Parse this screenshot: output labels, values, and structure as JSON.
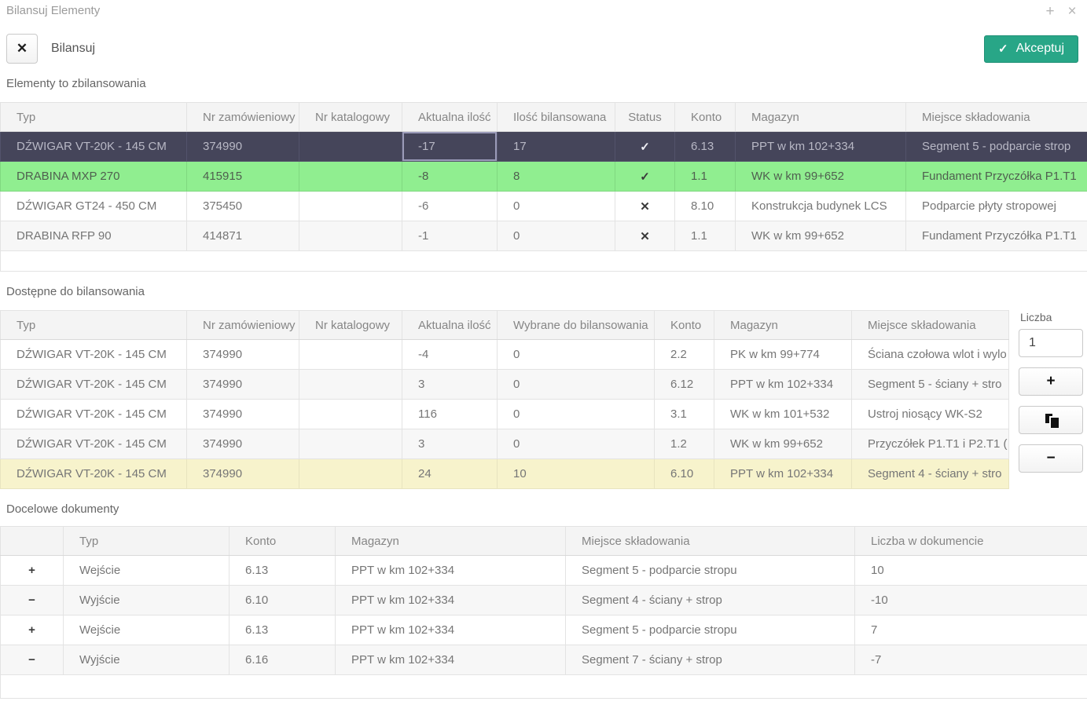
{
  "window": {
    "title": "Bilansuj Elementy",
    "plus_icon": "+",
    "close_icon": "×"
  },
  "toolbar": {
    "close_icon": "✕",
    "title": "Bilansuj",
    "accept_icon": "✓",
    "accept_label": "Akceptuj"
  },
  "colors": {
    "accent_green": "#28a687",
    "selected_row": "#45455a",
    "balanced_row": "#90ee90",
    "partial_row": "#f7f3cc"
  },
  "side_panel": {
    "label": "Liczba",
    "value": "1",
    "plus_label": "+",
    "minus_label": "−",
    "copy_icon": "copy-pages"
  },
  "tables": {
    "elements": {
      "title": "Elementy to zbilansowania",
      "columns": [
        "Typ",
        "Nr zamówieniowy",
        "Nr katalogowy",
        "Aktualna ilość",
        "Ilość bilansowana",
        "Status",
        "Konto",
        "Magazyn",
        "Miejsce składowania"
      ],
      "widths": [
        237,
        143,
        131,
        121,
        150,
        76,
        77,
        217,
        268
      ],
      "icon_col": 5,
      "center_cols": [
        5
      ],
      "empty_height": 26,
      "rows": [
        {
          "state": "selected",
          "focus_col": 3,
          "cells": [
            "DŹWIGAR VT-20K - 145 CM",
            "374990",
            "",
            "-17",
            "17",
            "✓",
            "6.13",
            "PPT w km 102+334",
            "Segment 5 - podparcie strop"
          ]
        },
        {
          "state": "green",
          "cells": [
            "DRABINA MXP 270",
            "415915",
            "",
            "-8",
            "8",
            "✓",
            "1.1",
            "WK w km 99+652",
            "Fundament Przyczółka P1.T1"
          ]
        },
        {
          "state": "",
          "cells": [
            "DŹWIGAR GT24 - 450 CM",
            "375450",
            "",
            "-6",
            "0",
            "✕",
            "8.10",
            "Konstrukcja budynek LCS",
            "Podparcie płyty stropowej"
          ]
        },
        {
          "state": "stripe",
          "cells": [
            "DRABINA RFP 90",
            "414871",
            "",
            "-1",
            "0",
            "✕",
            "1.1",
            "WK w km 99+652",
            "Fundament Przyczółka P1.T1"
          ]
        }
      ]
    },
    "available": {
      "title": "Dostępne do bilansowania",
      "columns": [
        "Typ",
        "Nr zamówieniowy",
        "Nr katalogowy",
        "Aktualna ilość",
        "Wybrane do bilansowania",
        "Konto",
        "Magazyn",
        "Miejsce składowania"
      ],
      "widths": [
        237,
        143,
        131,
        121,
        200,
        76,
        175,
        200
      ],
      "rows": [
        {
          "state": "",
          "cells": [
            "DŹWIGAR VT-20K - 145 CM",
            "374990",
            "",
            "-4",
            "0",
            "2.2",
            "PK w km 99+774",
            "Ściana czołowa wlot i wylo"
          ]
        },
        {
          "state": "stripe",
          "cells": [
            "DŹWIGAR VT-20K - 145 CM",
            "374990",
            "",
            "3",
            "0",
            "6.12",
            "PPT w km 102+334",
            "Segment 5 - ściany + stro"
          ]
        },
        {
          "state": "",
          "cells": [
            "DŹWIGAR VT-20K - 145 CM",
            "374990",
            "",
            "116",
            "0",
            "3.1",
            "WK w km 101+532",
            "Ustroj niosący WK-S2"
          ]
        },
        {
          "state": "stripe",
          "cells": [
            "DŹWIGAR VT-20K - 145 CM",
            "374990",
            "",
            "3",
            "0",
            "1.2",
            "WK w km 99+652",
            "Przyczółek P1.T1 i P2.T1 ("
          ]
        },
        {
          "state": "yellow",
          "cells": [
            "DŹWIGAR VT-20K - 145 CM",
            "374990",
            "",
            "24",
            "10",
            "6.10",
            "PPT w km 102+334",
            "Segment 4 - ściany + stro"
          ]
        }
      ]
    },
    "documents": {
      "title": "Docelowe dokumenty",
      "columns": [
        "",
        "Typ",
        "Konto",
        "Magazyn",
        "Miejsce składowania",
        "Liczba w dokumencie"
      ],
      "widths": [
        80,
        211,
        135,
        293,
        368,
        296
      ],
      "icon_col": 0,
      "center_cols": [
        0
      ],
      "empty_height": 30,
      "rows": [
        {
          "state": "",
          "cells": [
            "+",
            "Wejście",
            "6.13",
            "PPT w km 102+334",
            "Segment 5 - podparcie stropu",
            "10"
          ]
        },
        {
          "state": "stripe",
          "cells": [
            "−",
            "Wyjście",
            "6.10",
            "PPT w km 102+334",
            "Segment 4 - ściany + strop",
            "-10"
          ]
        },
        {
          "state": "",
          "cells": [
            "+",
            "Wejście",
            "6.13",
            "PPT w km 102+334",
            "Segment 5 - podparcie stropu",
            "7"
          ]
        },
        {
          "state": "stripe",
          "cells": [
            "−",
            "Wyjście",
            "6.16",
            "PPT w km 102+334",
            "Segment 7 - ściany + strop",
            "-7"
          ]
        }
      ]
    }
  }
}
